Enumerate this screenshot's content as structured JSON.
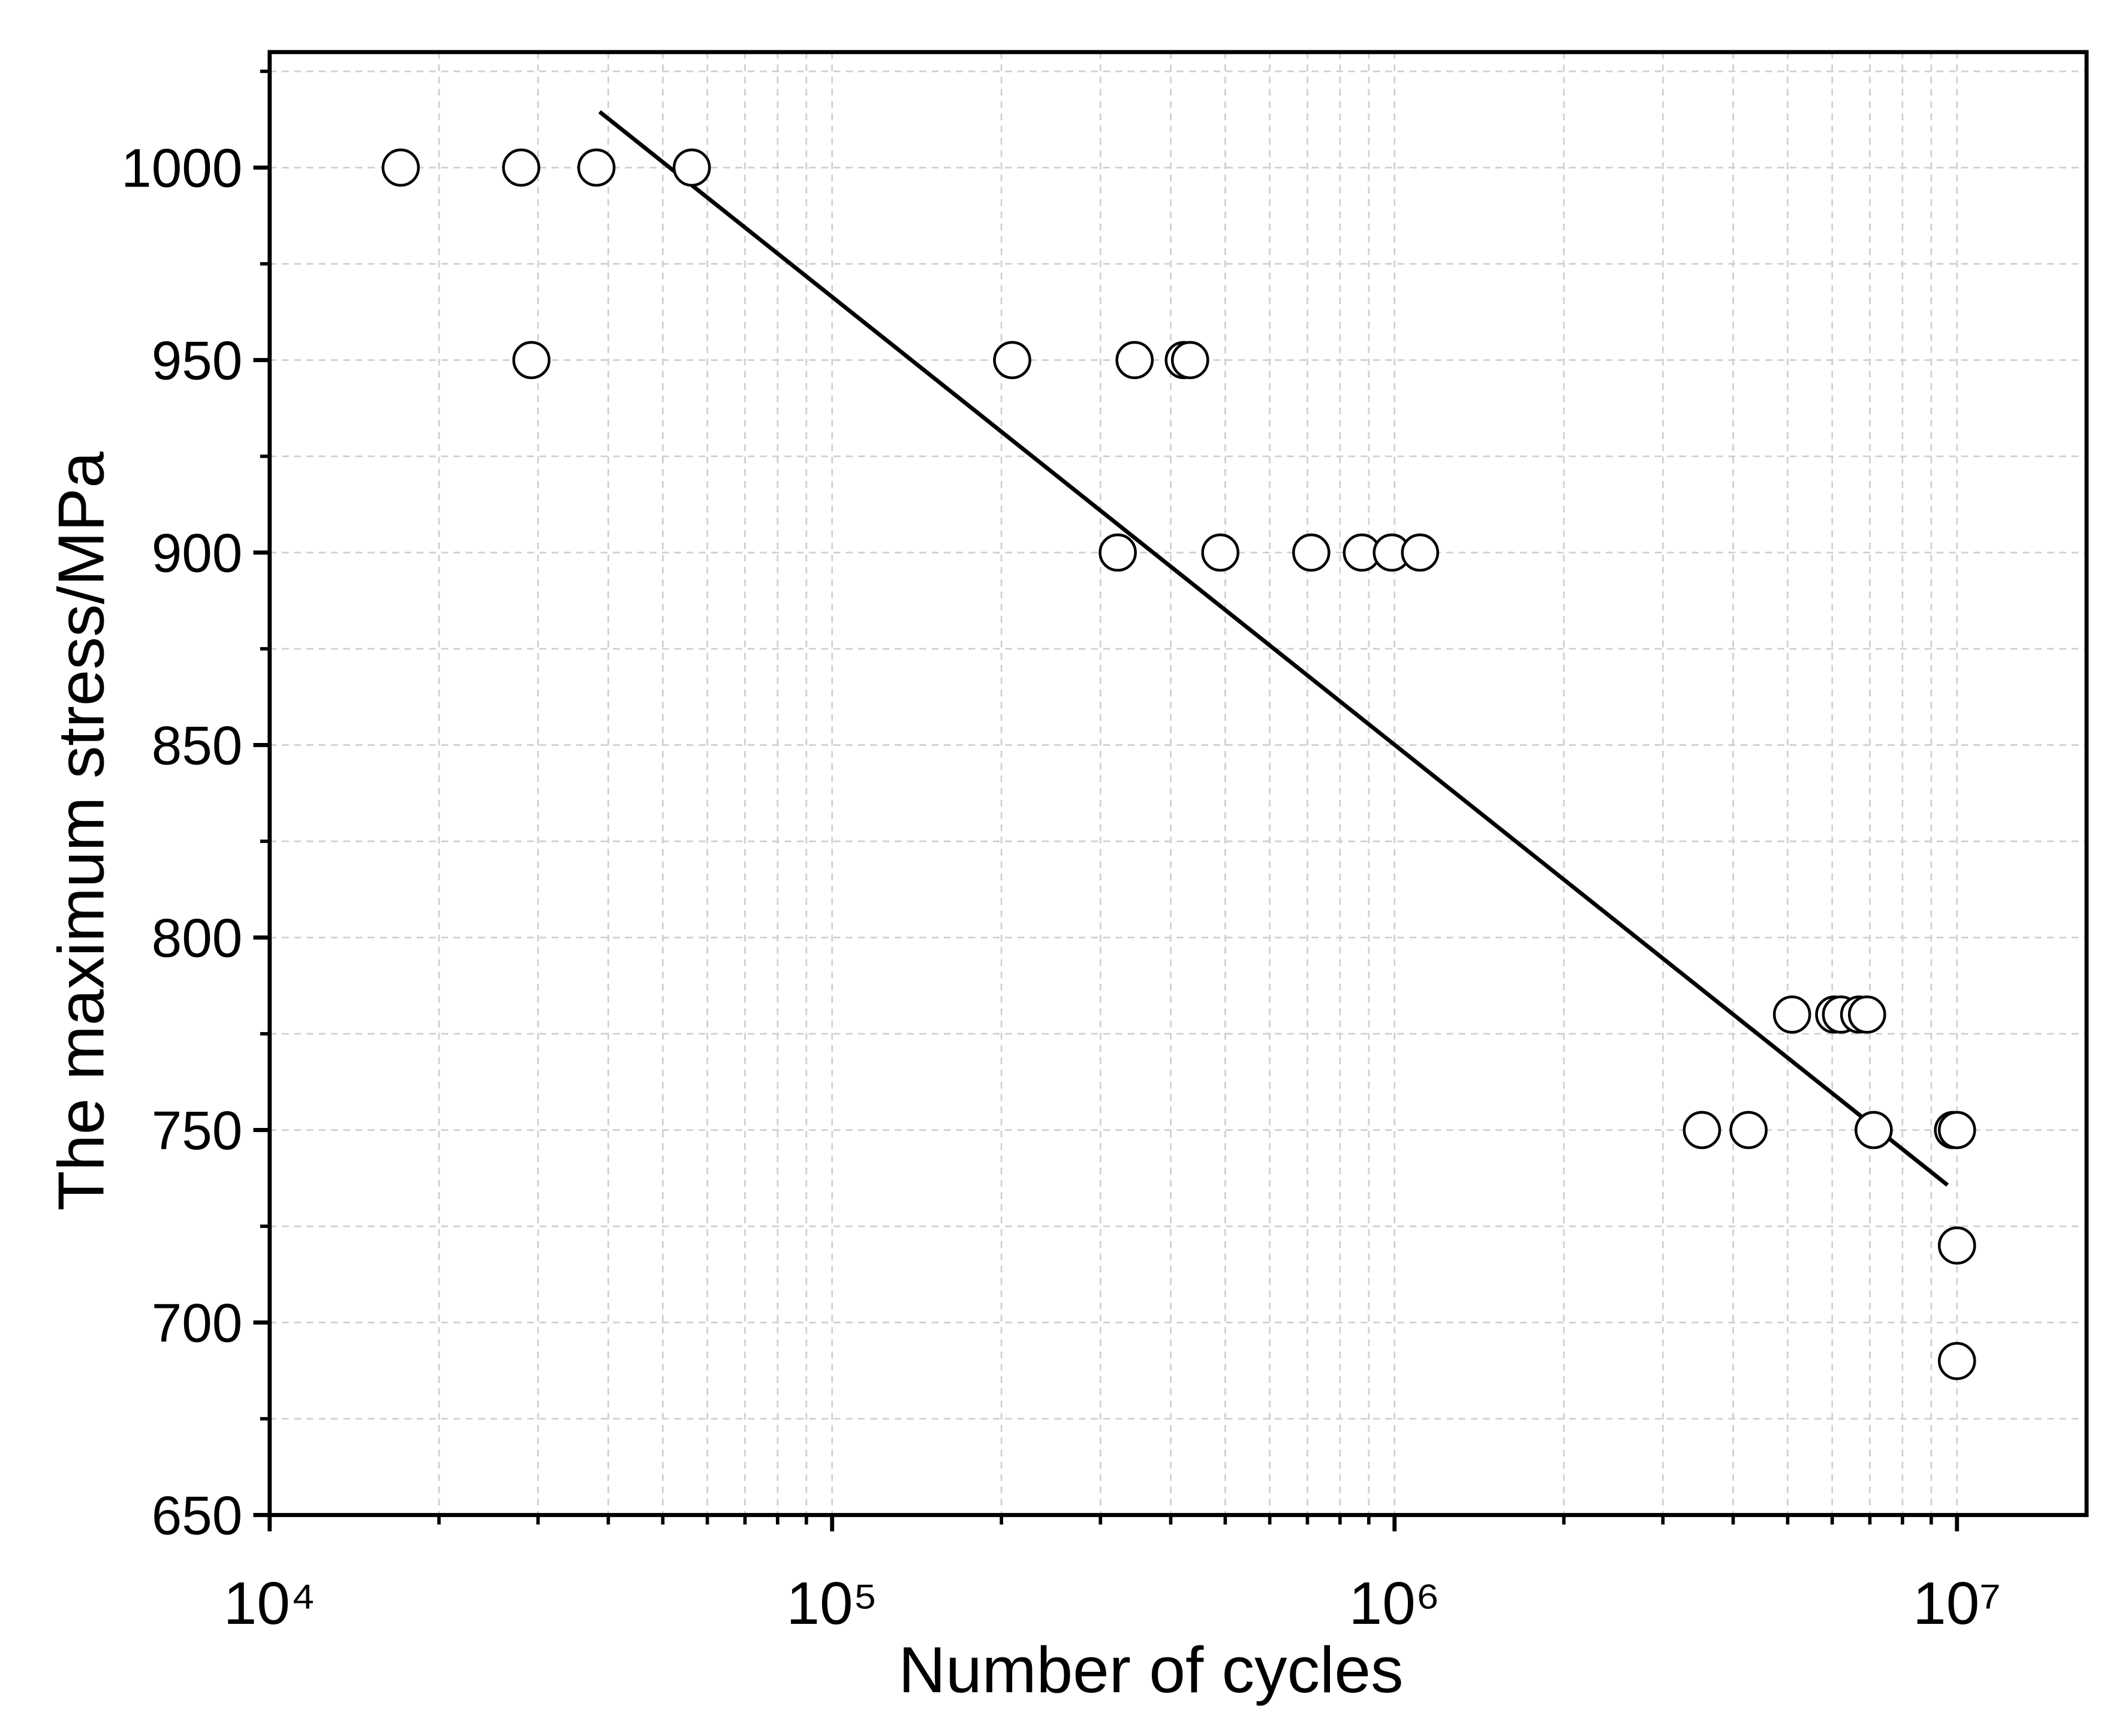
{
  "chart_data": {
    "type": "scatter",
    "x_label": "Number of cycles",
    "y_label": "The maximum stress/MPa",
    "x_scale": "log",
    "xlim": [
      10000,
      17000000
    ],
    "ylim": [
      650,
      1030
    ],
    "xticks": [
      {
        "value": 10000,
        "label": "10⁴"
      },
      {
        "value": 100000,
        "label": "10⁵"
      },
      {
        "value": 1000000,
        "label": "10⁶"
      },
      {
        "value": 10000000,
        "label": "10⁷"
      }
    ],
    "xminorticks": [
      20000,
      30000,
      40000,
      50000,
      60000,
      70000,
      80000,
      90000,
      200000,
      300000,
      400000,
      500000,
      600000,
      700000,
      800000,
      900000,
      2000000,
      3000000,
      4000000,
      5000000,
      6000000,
      7000000,
      8000000,
      9000000
    ],
    "yticks": [
      650,
      700,
      750,
      800,
      850,
      900,
      950,
      1000
    ],
    "yminorticks": [
      675,
      725,
      775,
      825,
      875,
      925,
      975,
      1025
    ],
    "grid": true,
    "marker_color": "#000000",
    "points": {
      "x": [
        17100,
        28000,
        38100,
        56300,
        29200,
        209000,
        345000,
        422000,
        433000,
        322000,
        490000,
        711000,
        875000,
        989000,
        1110000,
        5090000,
        6050000,
        6220000,
        6700000,
        6920000,
        3520000,
        4260000,
        7110000,
        9840000,
        10000000,
        10000000,
        10000000
      ],
      "y": [
        1000,
        1000,
        1000,
        1000,
        950,
        950,
        950,
        950,
        950,
        900,
        900,
        900,
        900,
        900,
        900,
        780,
        780,
        780,
        780,
        780,
        750,
        750,
        750,
        750,
        750,
        720,
        690
      ]
    },
    "fit": {
      "x": [
        38600,
        9620000
      ],
      "y": [
        1014.5,
        735.7
      ],
      "color": "#000000"
    }
  }
}
